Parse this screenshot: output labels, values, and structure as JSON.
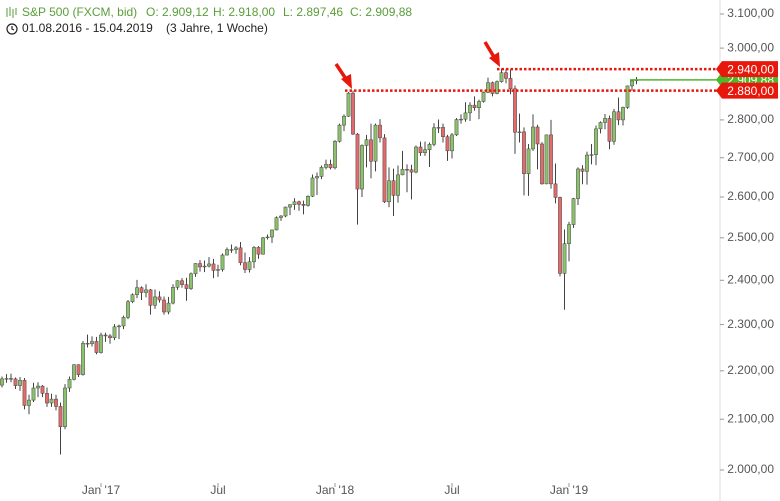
{
  "chart_data": {
    "type": "candlestick",
    "title": "S&P 500 (FXCM, bid)",
    "quote": {
      "open": "O: 2.909,12",
      "high": "H: 2.918,00",
      "low": "L: 2.897,46",
      "close": "C: 2.909,88"
    },
    "subtitle": "01.08.2016 - 15.04.2019",
    "period": "(3 Jahre, 1 Woche)",
    "log_scale": true,
    "up_color": "#8cc26b",
    "down_color": "#e36b6b",
    "ylim": [
      2000,
      3100
    ],
    "yticks": [
      {
        "value": 2000,
        "label": "2.000,00"
      },
      {
        "value": 2100,
        "label": "2.100,00"
      },
      {
        "value": 2200,
        "label": "2.200,00"
      },
      {
        "value": 2300,
        "label": "2.300,00"
      },
      {
        "value": 2400,
        "label": "2.400,00"
      },
      {
        "value": 2500,
        "label": "2.500,00"
      },
      {
        "value": 2600,
        "label": "2.600,00"
      },
      {
        "value": 2700,
        "label": "2.700,00"
      },
      {
        "value": 2800,
        "label": "2.800,00"
      },
      {
        "value": 2900,
        "label": "2.900,00"
      },
      {
        "value": 3000,
        "label": "3.000,00"
      },
      {
        "value": 3100,
        "label": "3.100,00"
      }
    ],
    "levels": [
      {
        "value": 2909.88,
        "label": "2.909,88",
        "color": "#4cb82a"
      },
      {
        "value": 2940,
        "label": "2.940,00",
        "color": "#e8170b"
      },
      {
        "value": 2880,
        "label": "2.880,00",
        "color": "#e8170b"
      }
    ],
    "categories": [
      null,
      null,
      null,
      null,
      null,
      null,
      null,
      null,
      null,
      null,
      null,
      null,
      null,
      null,
      null,
      null,
      null,
      null,
      null,
      null,
      null,
      null,
      "Jan '17",
      null,
      null,
      null,
      null,
      null,
      null,
      null,
      null,
      null,
      null,
      null,
      null,
      null,
      null,
      null,
      null,
      null,
      null,
      null,
      null,
      null,
      null,
      null,
      null,
      null,
      "Jul",
      null,
      null,
      null,
      null,
      null,
      null,
      null,
      null,
      null,
      null,
      null,
      null,
      null,
      null,
      null,
      null,
      null,
      null,
      null,
      null,
      null,
      null,
      null,
      null,
      null,
      "Jan '18",
      null,
      null,
      null,
      null,
      null,
      null,
      null,
      null,
      null,
      null,
      null,
      null,
      null,
      null,
      null,
      null,
      null,
      null,
      null,
      null,
      null,
      null,
      null,
      null,
      null,
      "Jul",
      null,
      null,
      null,
      null,
      null,
      null,
      null,
      null,
      null,
      null,
      null,
      null,
      null,
      null,
      null,
      null,
      null,
      null,
      null,
      null,
      null,
      null,
      null,
      null,
      null,
      "Jan '19",
      null,
      null,
      null,
      null,
      null,
      null,
      null,
      null,
      null,
      null,
      null,
      null,
      null,
      null,
      null
    ],
    "ohlc": [
      [
        2170,
        2188,
        2165,
        2183
      ],
      [
        2183,
        2193,
        2175,
        2184
      ],
      [
        2184,
        2194,
        2176,
        2183
      ],
      [
        2183,
        2186,
        2162,
        2169
      ],
      [
        2169,
        2187,
        2158,
        2180
      ],
      [
        2180,
        2185,
        2120,
        2128
      ],
      [
        2128,
        2150,
        2110,
        2139
      ],
      [
        2139,
        2175,
        2135,
        2164
      ],
      [
        2164,
        2176,
        2145,
        2168
      ],
      [
        2168,
        2170,
        2145,
        2153
      ],
      [
        2153,
        2165,
        2125,
        2133
      ],
      [
        2133,
        2152,
        2125,
        2141
      ],
      [
        2141,
        2150,
        2118,
        2126
      ],
      [
        2126,
        2134,
        2030,
        2085
      ],
      [
        2085,
        2172,
        2080,
        2164
      ],
      [
        2164,
        2188,
        2156,
        2182
      ],
      [
        2182,
        2214,
        2180,
        2213
      ],
      [
        2213,
        2214,
        2187,
        2192
      ],
      [
        2192,
        2264,
        2190,
        2259
      ],
      [
        2259,
        2278,
        2250,
        2258
      ],
      [
        2258,
        2274,
        2252,
        2263
      ],
      [
        2263,
        2273,
        2235,
        2239
      ],
      [
        2239,
        2282,
        2237,
        2277
      ],
      [
        2277,
        2282,
        2262,
        2275
      ],
      [
        2275,
        2279,
        2258,
        2271
      ],
      [
        2271,
        2301,
        2266,
        2295
      ],
      [
        2295,
        2300,
        2268,
        2297
      ],
      [
        2297,
        2320,
        2290,
        2316
      ],
      [
        2316,
        2355,
        2312,
        2351
      ],
      [
        2351,
        2370,
        2348,
        2367
      ],
      [
        2367,
        2401,
        2359,
        2383
      ],
      [
        2383,
        2386,
        2355,
        2372
      ],
      [
        2372,
        2391,
        2361,
        2378
      ],
      [
        2378,
        2380,
        2322,
        2343
      ],
      [
        2343,
        2379,
        2335,
        2362
      ],
      [
        2362,
        2375,
        2349,
        2355
      ],
      [
        2355,
        2363,
        2322,
        2328
      ],
      [
        2328,
        2362,
        2323,
        2348
      ],
      [
        2348,
        2391,
        2345,
        2384
      ],
      [
        2384,
        2400,
        2378,
        2399
      ],
      [
        2399,
        2405,
        2383,
        2390
      ],
      [
        2390,
        2406,
        2353,
        2381
      ],
      [
        2381,
        2418,
        2378,
        2415
      ],
      [
        2415,
        2440,
        2408,
        2439
      ],
      [
        2439,
        2447,
        2420,
        2431
      ],
      [
        2431,
        2446,
        2419,
        2433
      ],
      [
        2433,
        2454,
        2430,
        2438
      ],
      [
        2438,
        2450,
        2405,
        2423
      ],
      [
        2423,
        2436,
        2408,
        2425
      ],
      [
        2425,
        2463,
        2420,
        2459
      ],
      [
        2459,
        2477,
        2458,
        2472
      ],
      [
        2472,
        2484,
        2464,
        2472
      ],
      [
        2472,
        2480,
        2462,
        2476
      ],
      [
        2476,
        2490,
        2435,
        2441
      ],
      [
        2441,
        2465,
        2417,
        2425
      ],
      [
        2425,
        2454,
        2418,
        2443
      ],
      [
        2443,
        2480,
        2428,
        2477
      ],
      [
        2477,
        2480,
        2450,
        2461
      ],
      [
        2461,
        2502,
        2460,
        2500
      ],
      [
        2500,
        2508,
        2496,
        2502
      ],
      [
        2502,
        2520,
        2488,
        2519
      ],
      [
        2519,
        2552,
        2518,
        2549
      ],
      [
        2549,
        2555,
        2541,
        2553
      ],
      [
        2553,
        2576,
        2550,
        2575
      ],
      [
        2575,
        2582,
        2555,
        2581
      ],
      [
        2581,
        2597,
        2568,
        2588
      ],
      [
        2588,
        2591,
        2566,
        2582
      ],
      [
        2582,
        2591,
        2557,
        2579
      ],
      [
        2579,
        2604,
        2576,
        2602
      ],
      [
        2602,
        2657,
        2600,
        2648
      ],
      [
        2648,
        2662,
        2605,
        2652
      ],
      [
        2652,
        2680,
        2645,
        2675
      ],
      [
        2675,
        2695,
        2670,
        2683
      ],
      [
        2683,
        2695,
        2670,
        2674
      ],
      [
        2674,
        2746,
        2670,
        2743
      ],
      [
        2743,
        2790,
        2740,
        2786
      ],
      [
        2786,
        2815,
        2770,
        2810
      ],
      [
        2810,
        2876,
        2808,
        2873
      ],
      [
        2873,
        2880,
        2760,
        2762
      ],
      [
        2762,
        2765,
        2532,
        2620
      ],
      [
        2620,
        2735,
        2600,
        2732
      ],
      [
        2732,
        2760,
        2675,
        2747
      ],
      [
        2747,
        2790,
        2647,
        2691
      ],
      [
        2691,
        2790,
        2665,
        2786
      ],
      [
        2786,
        2802,
        2740,
        2752
      ],
      [
        2752,
        2762,
        2585,
        2588
      ],
      [
        2588,
        2675,
        2575,
        2641
      ],
      [
        2641,
        2672,
        2553,
        2604
      ],
      [
        2604,
        2680,
        2586,
        2656
      ],
      [
        2656,
        2718,
        2655,
        2670
      ],
      [
        2670,
        2683,
        2612,
        2669
      ],
      [
        2669,
        2682,
        2594,
        2663
      ],
      [
        2663,
        2732,
        2660,
        2728
      ],
      [
        2728,
        2742,
        2705,
        2713
      ],
      [
        2713,
        2742,
        2705,
        2721
      ],
      [
        2721,
        2740,
        2676,
        2735
      ],
      [
        2735,
        2791,
        2730,
        2779
      ],
      [
        2779,
        2801,
        2765,
        2780
      ],
      [
        2780,
        2790,
        2740,
        2755
      ],
      [
        2755,
        2760,
        2692,
        2718
      ],
      [
        2718,
        2765,
        2698,
        2760
      ],
      [
        2760,
        2805,
        2757,
        2801
      ],
      [
        2801,
        2815,
        2790,
        2802
      ],
      [
        2802,
        2848,
        2795,
        2819
      ],
      [
        2819,
        2848,
        2797,
        2840
      ],
      [
        2840,
        2864,
        2825,
        2833
      ],
      [
        2833,
        2855,
        2802,
        2850
      ],
      [
        2850,
        2877,
        2847,
        2875
      ],
      [
        2875,
        2916,
        2873,
        2902
      ],
      [
        2902,
        2905,
        2864,
        2872
      ],
      [
        2872,
        2908,
        2870,
        2905
      ],
      [
        2905,
        2941,
        2902,
        2930
      ],
      [
        2930,
        2940,
        2900,
        2914
      ],
      [
        2914,
        2939,
        2870,
        2885
      ],
      [
        2885,
        2894,
        2710,
        2767
      ],
      [
        2767,
        2817,
        2740,
        2768
      ],
      [
        2768,
        2780,
        2604,
        2659
      ],
      [
        2659,
        2736,
        2603,
        2723
      ],
      [
        2723,
        2815,
        2718,
        2781
      ],
      [
        2781,
        2787,
        2670,
        2736
      ],
      [
        2736,
        2741,
        2631,
        2633
      ],
      [
        2633,
        2761,
        2632,
        2760
      ],
      [
        2760,
        2800,
        2621,
        2633
      ],
      [
        2633,
        2685,
        2584,
        2599
      ],
      [
        2599,
        2601,
        2409,
        2416
      ],
      [
        2416,
        2520,
        2333,
        2486
      ],
      [
        2486,
        2539,
        2444,
        2532
      ],
      [
        2532,
        2598,
        2524,
        2596
      ],
      [
        2596,
        2675,
        2580,
        2671
      ],
      [
        2671,
        2681,
        2632,
        2665
      ],
      [
        2665,
        2716,
        2631,
        2707
      ],
      [
        2707,
        2736,
        2683,
        2708
      ],
      [
        2708,
        2785,
        2681,
        2776
      ],
      [
        2776,
        2796,
        2764,
        2793
      ],
      [
        2793,
        2816,
        2775,
        2804
      ],
      [
        2804,
        2812,
        2722,
        2743
      ],
      [
        2743,
        2830,
        2734,
        2822
      ],
      [
        2822,
        2861,
        2786,
        2800
      ],
      [
        2800,
        2836,
        2785,
        2834
      ],
      [
        2834,
        2894,
        2830,
        2893
      ],
      [
        2893,
        2910,
        2879,
        2907
      ],
      [
        2909.12,
        2918,
        2897.46,
        2909.88
      ]
    ]
  }
}
